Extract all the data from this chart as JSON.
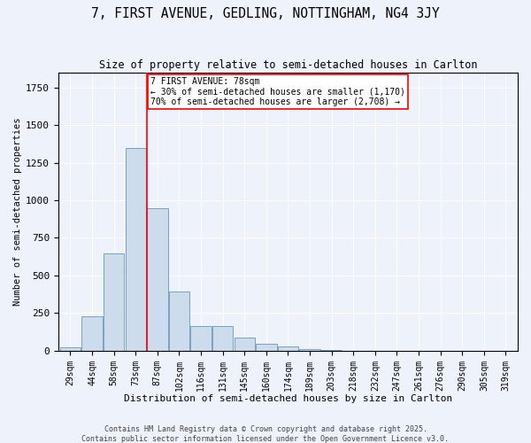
{
  "title": "7, FIRST AVENUE, GEDLING, NOTTINGHAM, NG4 3JY",
  "subtitle": "Size of property relative to semi-detached houses in Carlton",
  "xlabel": "Distribution of semi-detached houses by size in Carlton",
  "ylabel": "Number of semi-detached properties",
  "bin_labels": [
    "29sqm",
    "44sqm",
    "58sqm",
    "73sqm",
    "87sqm",
    "102sqm",
    "116sqm",
    "131sqm",
    "145sqm",
    "160sqm",
    "174sqm",
    "189sqm",
    "203sqm",
    "218sqm",
    "232sqm",
    "247sqm",
    "261sqm",
    "276sqm",
    "290sqm",
    "305sqm",
    "319sqm"
  ],
  "bar_values": [
    20,
    230,
    645,
    1350,
    950,
    395,
    165,
    165,
    90,
    45,
    30,
    10,
    5,
    2,
    1,
    0,
    0,
    0,
    0,
    0,
    0
  ],
  "bar_color": "#ccdcec",
  "bar_edge_color": "#6699bb",
  "vline_color": "red",
  "vline_x_index": 3,
  "annotation_text": "7 FIRST AVENUE: 78sqm\n← 30% of semi-detached houses are smaller (1,170)\n70% of semi-detached houses are larger (2,708) →",
  "annotation_box_color": "white",
  "annotation_box_edge": "red",
  "footer1": "Contains HM Land Registry data © Crown copyright and database right 2025.",
  "footer2": "Contains public sector information licensed under the Open Government Licence v3.0.",
  "bg_color": "#eef2fa",
  "grid_color": "white",
  "ylim": [
    0,
    1850
  ],
  "title_fontsize": 10.5,
  "subtitle_fontsize": 8.5,
  "xlabel_fontsize": 8,
  "ylabel_fontsize": 7.5,
  "tick_fontsize": 7,
  "annot_fontsize": 7,
  "footer_fontsize": 6
}
